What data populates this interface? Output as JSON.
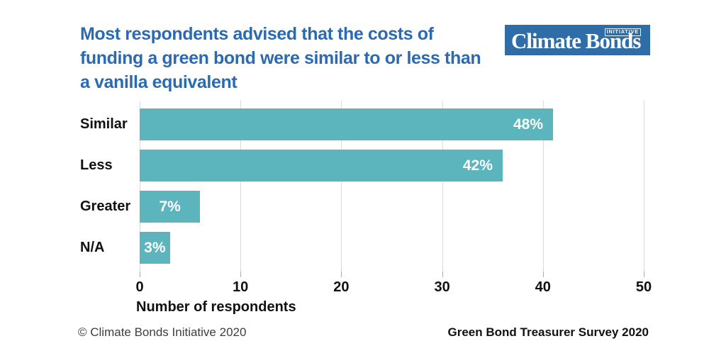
{
  "title": {
    "lines": [
      "Most respondents advised that the costs of",
      "funding a green bond were similar to or less than",
      "a vanilla equivalent"
    ]
  },
  "logo": {
    "name": "Climate Bonds",
    "tagline": "INITIATIVE"
  },
  "chart_data": {
    "type": "bar",
    "orientation": "horizontal",
    "title": "Most respondents advised that the costs of funding a green bond were similar to or less than a vanilla equivalent",
    "categories": [
      "Similar",
      "Less",
      "Greater",
      "N/A"
    ],
    "values": [
      41,
      36,
      6,
      3
    ],
    "value_unit": "respondents (estimated from axis)",
    "percent_labels": [
      "48%",
      "42%",
      "7%",
      "3%"
    ],
    "xlabel": "Number of respondents",
    "xlim": [
      0,
      50
    ],
    "xticks": [
      0,
      10,
      20,
      30,
      40,
      50
    ],
    "grid": true,
    "legend": false
  },
  "footer": {
    "left": "© Climate Bonds Initiative 2020",
    "right": "Green Bond Treasurer Survey 2020"
  },
  "colors": {
    "title_blue": "#2b6ab1",
    "logo_blue": "#2f6da9",
    "bar_teal": "#5cb4bd",
    "grid_gray": "#d9d9d9",
    "tick_gray": "#ababab",
    "bar_label_white": "#ffffff",
    "text_black": "#111111",
    "copyright_gray": "#3d3d3d"
  }
}
